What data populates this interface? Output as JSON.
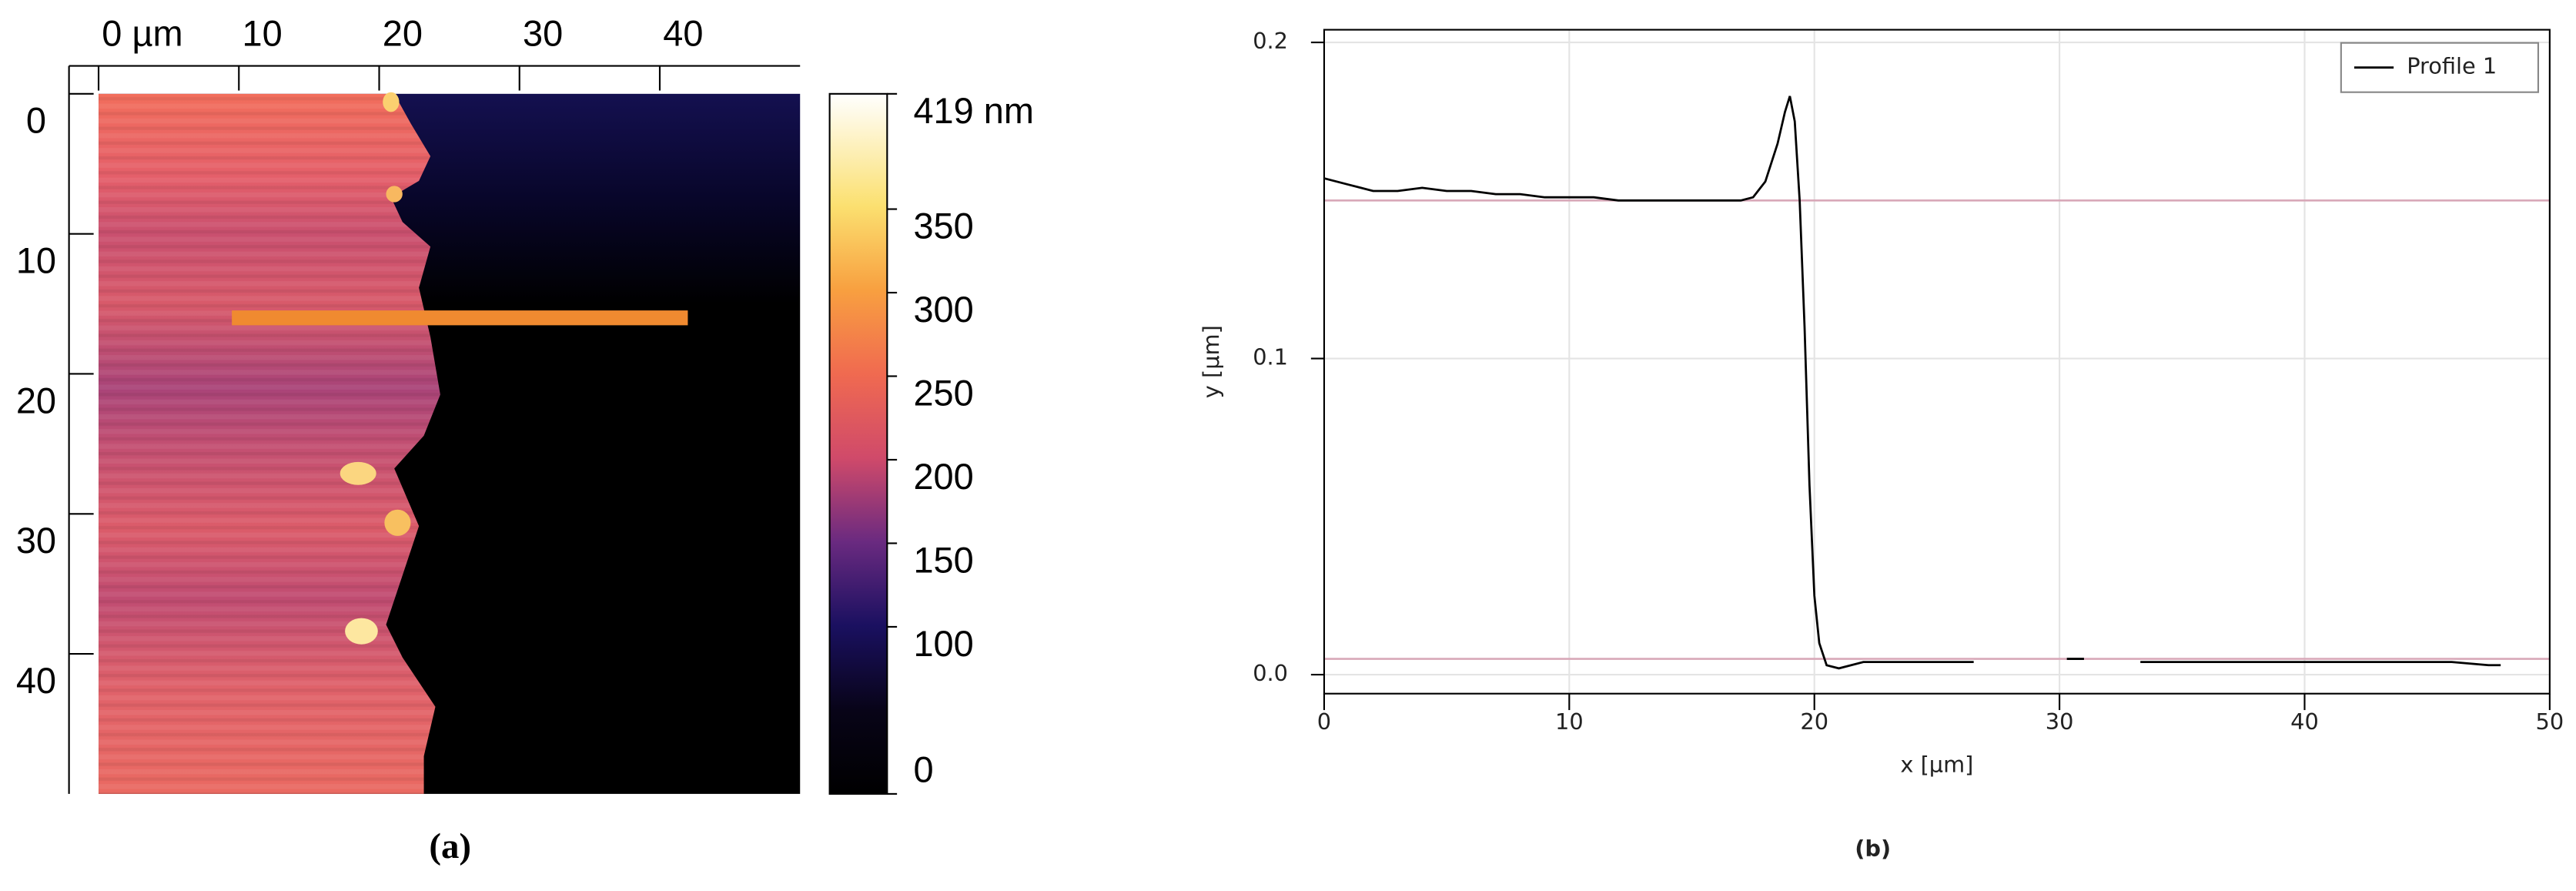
{
  "chart_data": [
    {
      "type": "image",
      "panel_label": "(a)",
      "xlim": [
        0,
        50
      ],
      "ylim": [
        0,
        50
      ],
      "xticks": [
        {
          "value": 0,
          "label": "0 µm"
        },
        10,
        20,
        30,
        40
      ],
      "yticks": [
        0,
        10,
        20,
        30,
        40
      ],
      "colorbar": {
        "clim": [
          0,
          419
        ],
        "ticks": [
          {
            "value": 419,
            "label": "419 nm"
          },
          350,
          300,
          250,
          200,
          150,
          100,
          0
        ]
      },
      "profile_line": {
        "x": [
          9.5,
          42
        ],
        "y": [
          16,
          16
        ],
        "color": "#f08a30"
      }
    },
    {
      "type": "line",
      "panel_label": "(b)",
      "xlabel": "x [µm]",
      "ylabel": "y [µm]",
      "xlim": [
        0,
        50
      ],
      "ylim": [
        -0.006,
        0.204
      ],
      "xticks": [
        0,
        10,
        20,
        30,
        40,
        50
      ],
      "yticks": [
        {
          "value": 0,
          "label": "0.0"
        },
        0.1,
        0.2
      ],
      "grid": true,
      "legend": "upper right",
      "reference_lines": {
        "values": [
          0.15,
          0.005
        ],
        "color": "#d8a8b8"
      },
      "x": [
        0,
        0.5,
        1,
        1.5,
        2,
        3,
        4,
        5,
        6,
        7,
        8,
        9,
        10,
        11,
        12,
        13,
        14,
        15,
        16,
        17,
        17.5,
        18,
        18.5,
        18.8,
        19,
        19.2,
        19.4,
        19.6,
        19.8,
        20,
        20.2,
        20.5,
        21,
        22,
        24,
        26.5,
        27,
        30.3,
        31,
        31.5,
        33.3,
        36,
        40,
        44,
        46,
        47.5,
        48
      ],
      "series": [
        {
          "name": "Profile 1",
          "color": "#000000",
          "values": [
            0.157,
            0.156,
            0.155,
            0.154,
            0.153,
            0.153,
            0.154,
            0.153,
            0.153,
            0.152,
            0.152,
            0.151,
            0.151,
            0.151,
            0.15,
            0.15,
            0.15,
            0.15,
            0.15,
            0.15,
            0.151,
            0.156,
            0.168,
            0.178,
            0.183,
            0.175,
            0.15,
            0.11,
            0.06,
            0.025,
            0.01,
            0.003,
            0.002,
            0.004,
            0.004,
            0.004,
            null,
            0.005,
            0.005,
            null,
            0.004,
            0.004,
            0.004,
            0.004,
            0.004,
            0.003,
            0.003
          ]
        }
      ]
    }
  ]
}
